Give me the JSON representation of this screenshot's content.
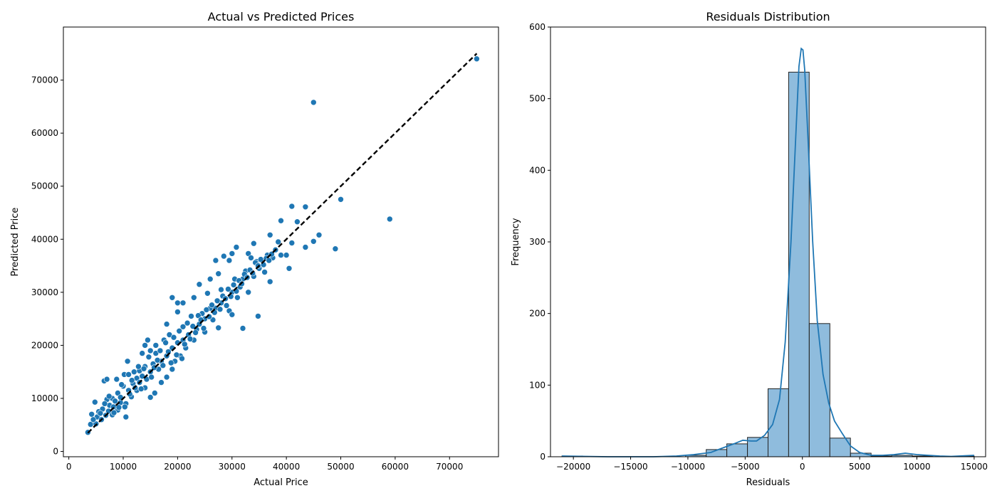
{
  "chart_data": [
    {
      "type": "scatter",
      "title": "Actual vs Predicted Prices",
      "xlabel": "Actual Price",
      "ylabel": "Predicted Price",
      "xlim": [
        -1000,
        79000
      ],
      "ylim": [
        -1000,
        80000
      ],
      "xticks": [
        0,
        10000,
        20000,
        30000,
        40000,
        50000,
        60000,
        70000
      ],
      "yticks": [
        0,
        10000,
        20000,
        30000,
        40000,
        50000,
        60000,
        70000
      ],
      "point_color": "#1f77b4",
      "reference_line": {
        "from": [
          3500,
          3500
        ],
        "to": [
          75000,
          75000
        ],
        "color": "#000000",
        "style": "dashed"
      },
      "points": [
        [
          3500,
          3600
        ],
        [
          4000,
          5100
        ],
        [
          4200,
          7000
        ],
        [
          4800,
          9300
        ],
        [
          5000,
          5200
        ],
        [
          5200,
          6500
        ],
        [
          5500,
          7500
        ],
        [
          6000,
          6000
        ],
        [
          6200,
          8000
        ],
        [
          6500,
          13300
        ],
        [
          6800,
          6800
        ],
        [
          7000,
          9800
        ],
        [
          7000,
          13600
        ],
        [
          7300,
          7600
        ],
        [
          7500,
          8700
        ],
        [
          8000,
          6900
        ],
        [
          8000,
          10000
        ],
        [
          8200,
          8400
        ],
        [
          8500,
          9500
        ],
        [
          8800,
          13600
        ],
        [
          9000,
          7800
        ],
        [
          9000,
          11000
        ],
        [
          9500,
          9200
        ],
        [
          9500,
          10200
        ],
        [
          10000,
          12300
        ],
        [
          10200,
          14500
        ],
        [
          10500,
          6500
        ],
        [
          10500,
          9000
        ],
        [
          10800,
          17000
        ],
        [
          11000,
          11500
        ],
        [
          11000,
          14500
        ],
        [
          11500,
          10300
        ],
        [
          11800,
          12800
        ],
        [
          12000,
          15000
        ],
        [
          12500,
          11500
        ],
        [
          12500,
          13800
        ],
        [
          13000,
          13000
        ],
        [
          13000,
          15200
        ],
        [
          13500,
          18500
        ],
        [
          13500,
          14200
        ],
        [
          14000,
          20000
        ],
        [
          14000,
          16000
        ],
        [
          14000,
          12000
        ],
        [
          14500,
          21000
        ],
        [
          15000,
          10200
        ],
        [
          15000,
          15000
        ],
        [
          15000,
          19000
        ],
        [
          15500,
          16500
        ],
        [
          15800,
          11000
        ],
        [
          16000,
          18500
        ],
        [
          16000,
          20000
        ],
        [
          16500,
          15500
        ],
        [
          17000,
          13000
        ],
        [
          17000,
          17000
        ],
        [
          17500,
          21000
        ],
        [
          18000,
          14000
        ],
        [
          18000,
          18000
        ],
        [
          18000,
          24000
        ],
        [
          18500,
          22000
        ],
        [
          19000,
          15500
        ],
        [
          19000,
          19500
        ],
        [
          19000,
          29000
        ],
        [
          19500,
          17000
        ],
        [
          20000,
          20500
        ],
        [
          20000,
          28000
        ],
        [
          20000,
          26300
        ],
        [
          20500,
          18000
        ],
        [
          21000,
          21000
        ],
        [
          21000,
          28000
        ],
        [
          21000,
          23500
        ],
        [
          21500,
          19500
        ],
        [
          22000,
          22000
        ],
        [
          22500,
          25500
        ],
        [
          23000,
          21000
        ],
        [
          23000,
          29000
        ],
        [
          23500,
          23000
        ],
        [
          24000,
          24000
        ],
        [
          24000,
          31500
        ],
        [
          24500,
          26000
        ],
        [
          25000,
          22500
        ],
        [
          25000,
          25000
        ],
        [
          25500,
          29800
        ],
        [
          26000,
          32500
        ],
        [
          26000,
          27000
        ],
        [
          26500,
          24800
        ],
        [
          27000,
          36000
        ],
        [
          27000,
          27000
        ],
        [
          27500,
          23300
        ],
        [
          27500,
          33500
        ],
        [
          28000,
          30500
        ],
        [
          28000,
          28000
        ],
        [
          28500,
          36800
        ],
        [
          29000,
          27500
        ],
        [
          29500,
          36000
        ],
        [
          29500,
          26500
        ],
        [
          30000,
          30000
        ],
        [
          30000,
          37300
        ],
        [
          30000,
          25800
        ],
        [
          30500,
          32500
        ],
        [
          30800,
          38500
        ],
        [
          31000,
          29000
        ],
        [
          31500,
          31000
        ],
        [
          32000,
          23200
        ],
        [
          32000,
          32500
        ],
        [
          32500,
          34000
        ],
        [
          33000,
          30000
        ],
        [
          33000,
          37300
        ],
        [
          33500,
          36500
        ],
        [
          34000,
          39200
        ],
        [
          34000,
          33000
        ],
        [
          34500,
          35800
        ],
        [
          34800,
          25500
        ],
        [
          35000,
          34500
        ],
        [
          35500,
          36000
        ],
        [
          36000,
          33800
        ],
        [
          36500,
          37000
        ],
        [
          37000,
          32000
        ],
        [
          37000,
          40800
        ],
        [
          37500,
          36500
        ],
        [
          38000,
          38000
        ],
        [
          38500,
          39500
        ],
        [
          39000,
          43500
        ],
        [
          39000,
          37000
        ],
        [
          40000,
          37000
        ],
        [
          40500,
          34500
        ],
        [
          41000,
          46200
        ],
        [
          41000,
          39300
        ],
        [
          42000,
          43300
        ],
        [
          43500,
          46100
        ],
        [
          43500,
          38500
        ],
        [
          45000,
          39600
        ],
        [
          45000,
          65800
        ],
        [
          46000,
          40800
        ],
        [
          49000,
          38200
        ],
        [
          50000,
          47500
        ],
        [
          59000,
          43800
        ],
        [
          75000,
          74000
        ],
        [
          4500,
          6000
        ],
        [
          5800,
          7200
        ],
        [
          6600,
          9000
        ],
        [
          7400,
          10400
        ],
        [
          8300,
          7300
        ],
        [
          9200,
          8300
        ],
        [
          9700,
          12600
        ],
        [
          10300,
          8400
        ],
        [
          11200,
          10800
        ],
        [
          11600,
          13400
        ],
        [
          12200,
          12000
        ],
        [
          12800,
          16000
        ],
        [
          13300,
          11800
        ],
        [
          13800,
          15600
        ],
        [
          14300,
          13600
        ],
        [
          14700,
          17800
        ],
        [
          15200,
          14000
        ],
        [
          15700,
          15800
        ],
        [
          16300,
          17200
        ],
        [
          16800,
          19000
        ],
        [
          17300,
          16200
        ],
        [
          17800,
          20500
        ],
        [
          18300,
          18800
        ],
        [
          18800,
          16700
        ],
        [
          19300,
          21500
        ],
        [
          19800,
          18200
        ],
        [
          20300,
          22700
        ],
        [
          20800,
          17500
        ],
        [
          21300,
          20200
        ],
        [
          21800,
          24200
        ],
        [
          22300,
          21200
        ],
        [
          22800,
          23600
        ],
        [
          23300,
          22400
        ],
        [
          23800,
          25600
        ],
        [
          24300,
          24800
        ],
        [
          24800,
          23200
        ],
        [
          25300,
          26700
        ],
        [
          25800,
          25400
        ],
        [
          26300,
          27600
        ],
        [
          26800,
          26200
        ],
        [
          27300,
          28400
        ],
        [
          27800,
          26800
        ],
        [
          28300,
          29300
        ],
        [
          28800,
          28800
        ],
        [
          29300,
          30600
        ],
        [
          29800,
          29200
        ],
        [
          30300,
          31400
        ],
        [
          30800,
          30200
        ],
        [
          31300,
          32200
        ],
        [
          31800,
          31600
        ],
        [
          32300,
          33400
        ],
        [
          32800,
          32800
        ],
        [
          33300,
          34200
        ],
        [
          33800,
          33600
        ],
        [
          34300,
          35600
        ],
        [
          34800,
          35000
        ],
        [
          35300,
          36200
        ],
        [
          35800,
          35200
        ],
        [
          36300,
          36400
        ],
        [
          36800,
          36000
        ],
        [
          37300,
          37200
        ]
      ]
    },
    {
      "type": "bar",
      "subtype": "histogram_with_kde",
      "title": "Residuals Distribution",
      "xlabel": "Residuals",
      "ylabel": "Frequency",
      "xlim": [
        -22000,
        16000
      ],
      "ylim": [
        0,
        600
      ],
      "xticks": [
        -20000,
        -15000,
        -10000,
        -5000,
        0,
        5000,
        10000,
        15000
      ],
      "xticklabels": [
        "−20000",
        "−15000",
        "−10000",
        "−5000",
        "0",
        "5000",
        "10000",
        "15000"
      ],
      "yticks": [
        0,
        100,
        200,
        300,
        400,
        500,
        600
      ],
      "bar_fill": "#8fbcdd",
      "bar_edge": "#222222",
      "kde_color": "#1f77b4",
      "bins": [
        [
          -21000,
          -19200,
          1
        ],
        [
          -19200,
          -17400,
          0
        ],
        [
          -17400,
          -15600,
          0
        ],
        [
          -15600,
          -13800,
          0
        ],
        [
          -13800,
          -12000,
          0
        ],
        [
          -12000,
          -10200,
          0
        ],
        [
          -10200,
          -8400,
          2
        ],
        [
          -8400,
          -6600,
          10
        ],
        [
          -6600,
          -4800,
          18
        ],
        [
          -4800,
          -3000,
          27
        ],
        [
          -3000,
          -1200,
          95
        ],
        [
          -1200,
          600,
          537
        ],
        [
          600,
          2400,
          186
        ],
        [
          2400,
          4200,
          26
        ],
        [
          4200,
          6000,
          5
        ],
        [
          6000,
          7800,
          1
        ],
        [
          7800,
          9600,
          2
        ],
        [
          9600,
          11400,
          1
        ],
        [
          11400,
          13200,
          0
        ],
        [
          13200,
          15000,
          1
        ]
      ],
      "kde": [
        [
          -21000,
          1
        ],
        [
          -19000,
          0.5
        ],
        [
          -17000,
          0
        ],
        [
          -15000,
          0
        ],
        [
          -13000,
          0
        ],
        [
          -11000,
          1
        ],
        [
          -9500,
          3
        ],
        [
          -8000,
          6
        ],
        [
          -7000,
          12
        ],
        [
          -6000,
          18
        ],
        [
          -5200,
          23
        ],
        [
          -4500,
          22
        ],
        [
          -4000,
          22
        ],
        [
          -3300,
          30
        ],
        [
          -2600,
          45
        ],
        [
          -2000,
          80
        ],
        [
          -1500,
          160
        ],
        [
          -1000,
          300
        ],
        [
          -600,
          440
        ],
        [
          -300,
          545
        ],
        [
          -100,
          570
        ],
        [
          50,
          568
        ],
        [
          200,
          540
        ],
        [
          500,
          440
        ],
        [
          900,
          300
        ],
        [
          1300,
          190
        ],
        [
          1800,
          115
        ],
        [
          2300,
          75
        ],
        [
          2800,
          50
        ],
        [
          3500,
          32
        ],
        [
          4200,
          15
        ],
        [
          5000,
          6
        ],
        [
          6000,
          2
        ],
        [
          7000,
          2
        ],
        [
          8000,
          3
        ],
        [
          9000,
          5
        ],
        [
          10000,
          3
        ],
        [
          11000,
          2
        ],
        [
          12000,
          1
        ],
        [
          13000,
          0.5
        ],
        [
          15000,
          2
        ]
      ]
    }
  ]
}
